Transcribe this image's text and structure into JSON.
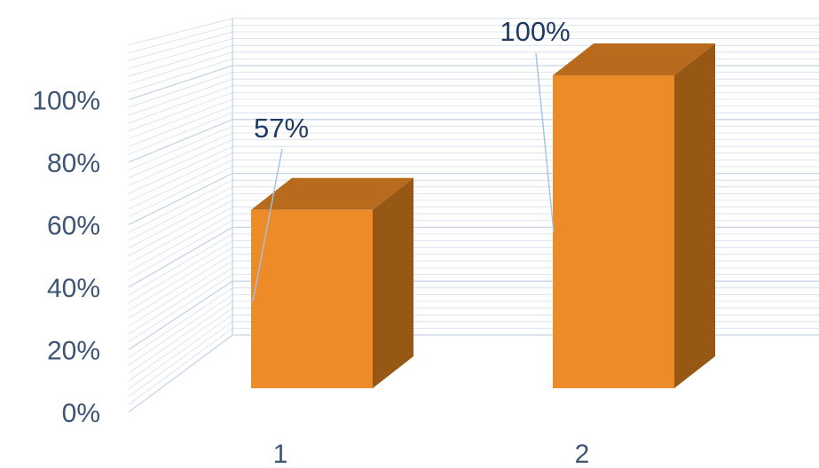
{
  "chart_data": {
    "type": "bar",
    "style": "3d-column",
    "categories": [
      "1",
      "2"
    ],
    "values": [
      0.57,
      1.0
    ],
    "data_labels": [
      "57%",
      "100%"
    ],
    "yticks": [
      "0%",
      "20%",
      "40%",
      "60%",
      "80%",
      "100%"
    ],
    "ylim": [
      0,
      1.2
    ],
    "grid": true,
    "legend": "none",
    "colors": {
      "bar_front": "#ec8b27",
      "bar_top": "#b86b1c",
      "bar_side": "#975815",
      "grid": "#c7d4e6",
      "leader_line": "#9ec3e6",
      "axis_text": "#3d5474",
      "label_text": "#1f3b63"
    }
  }
}
